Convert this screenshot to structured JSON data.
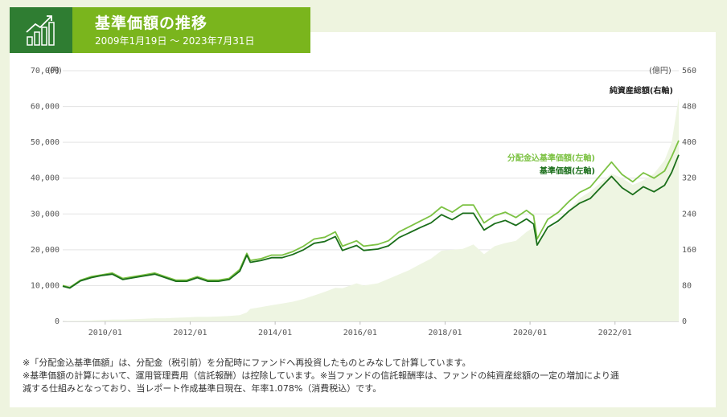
{
  "header": {
    "title": "基準価額の推移",
    "period": "2009年1月19日 ～ 2023年7月31日",
    "icon": "bar-chart-trend-icon"
  },
  "colors": {
    "header_green": "#7ab51d",
    "header_dark_green": "#2f7d32",
    "nav": "#1a6e1a",
    "nav_reinvested": "#7cc243",
    "net_assets_fill": "#eef5e2"
  },
  "chart_data": {
    "type": "line",
    "left_unit": "(円)",
    "right_unit": "(億円)",
    "left_ticks": [
      "70,000",
      "60,000",
      "50,000",
      "40,000",
      "30,000",
      "20,000",
      "10,000",
      "0"
    ],
    "right_ticks": [
      "560",
      "480",
      "400",
      "320",
      "240",
      "160",
      "80",
      "0"
    ],
    "x_ticks": [
      "2010/01",
      "2012/01",
      "2014/01",
      "2016/01",
      "2018/01",
      "2020/01",
      "2022/01"
    ],
    "ylim_left": [
      0,
      70000
    ],
    "ylim_right": [
      0,
      560
    ],
    "x": [
      "2009/01",
      "2009/03",
      "2009/06",
      "2009/09",
      "2009/12",
      "2010/03",
      "2010/06",
      "2010/09",
      "2010/12",
      "2011/03",
      "2011/06",
      "2011/09",
      "2011/12",
      "2012/03",
      "2012/06",
      "2012/09",
      "2012/12",
      "2013/03",
      "2013/05",
      "2013/06",
      "2013/09",
      "2013/12",
      "2014/03",
      "2014/06",
      "2014/09",
      "2014/12",
      "2015/03",
      "2015/06",
      "2015/08",
      "2015/12",
      "2016/02",
      "2016/06",
      "2016/09",
      "2016/12",
      "2017/03",
      "2017/06",
      "2017/09",
      "2017/12",
      "2018/03",
      "2018/06",
      "2018/09",
      "2018/12",
      "2019/03",
      "2019/06",
      "2019/09",
      "2019/12",
      "2020/02",
      "2020/03",
      "2020/06",
      "2020/09",
      "2020/12",
      "2021/03",
      "2021/06",
      "2021/09",
      "2021/12",
      "2022/03",
      "2022/06",
      "2022/09",
      "2022/12",
      "2023/03",
      "2023/05",
      "2023/07"
    ],
    "series": [
      {
        "name": "純資産総額(右軸)",
        "axis": "right",
        "values": [
          0.5,
          1,
          1.5,
          2,
          3,
          4,
          4,
          5,
          6,
          7,
          7,
          8,
          9,
          10,
          10,
          11,
          12,
          14,
          20,
          28,
          32,
          36,
          40,
          44,
          50,
          58,
          66,
          75,
          74,
          85,
          80,
          85,
          95,
          105,
          115,
          128,
          140,
          158,
          160,
          162,
          172,
          150,
          168,
          175,
          180,
          200,
          210,
          178,
          205,
          220,
          250,
          275,
          290,
          310,
          330,
          320,
          305,
          315,
          330,
          360,
          400,
          500
        ]
      },
      {
        "name": "分配金込基準価額(左軸)",
        "axis": "left",
        "values": [
          10000,
          9500,
          11500,
          12500,
          13000,
          13500,
          12000,
          12500,
          13000,
          13500,
          12500,
          11500,
          11500,
          12500,
          11500,
          11500,
          12000,
          14500,
          19000,
          17000,
          17500,
          18500,
          18500,
          19500,
          21000,
          23000,
          23500,
          25000,
          21000,
          22500,
          21000,
          21500,
          22500,
          25000,
          26500,
          28000,
          29500,
          32000,
          30500,
          32500,
          32500,
          27500,
          29500,
          30500,
          29000,
          31000,
          29500,
          23000,
          28500,
          30500,
          33500,
          36000,
          37500,
          41000,
          44500,
          41000,
          39000,
          41500,
          40000,
          42000,
          46000,
          50500
        ]
      },
      {
        "name": "基準価額(左軸)",
        "axis": "left",
        "values": [
          9800,
          9300,
          11300,
          12200,
          12800,
          13200,
          11700,
          12200,
          12700,
          13200,
          12200,
          11200,
          11200,
          12200,
          11200,
          11200,
          11700,
          14000,
          18500,
          16500,
          17000,
          17800,
          17800,
          18700,
          20000,
          21800,
          22300,
          23700,
          19800,
          21200,
          19800,
          20200,
          21100,
          23400,
          24800,
          26200,
          27500,
          29800,
          28400,
          30200,
          30200,
          25500,
          27300,
          28200,
          26800,
          28600,
          27200,
          21300,
          26300,
          28100,
          30800,
          33000,
          34300,
          37400,
          40500,
          37300,
          35400,
          37600,
          36200,
          38000,
          41600,
          46500
        ]
      }
    ]
  },
  "notes": [
    "※「分配金込基準価額」は、分配金（税引前）を分配時にファンドへ再投資したものとみなして計算しています。",
    "※基準価額の計算において、運用管理費用（信託報酬）は控除しています。※当ファンドの信託報酬率は、ファンドの純資産総額の一定の増加により逓",
    "減する仕組みとなっており、当レポート作成基準日現在、年率1.078%（消費税込）です。"
  ]
}
